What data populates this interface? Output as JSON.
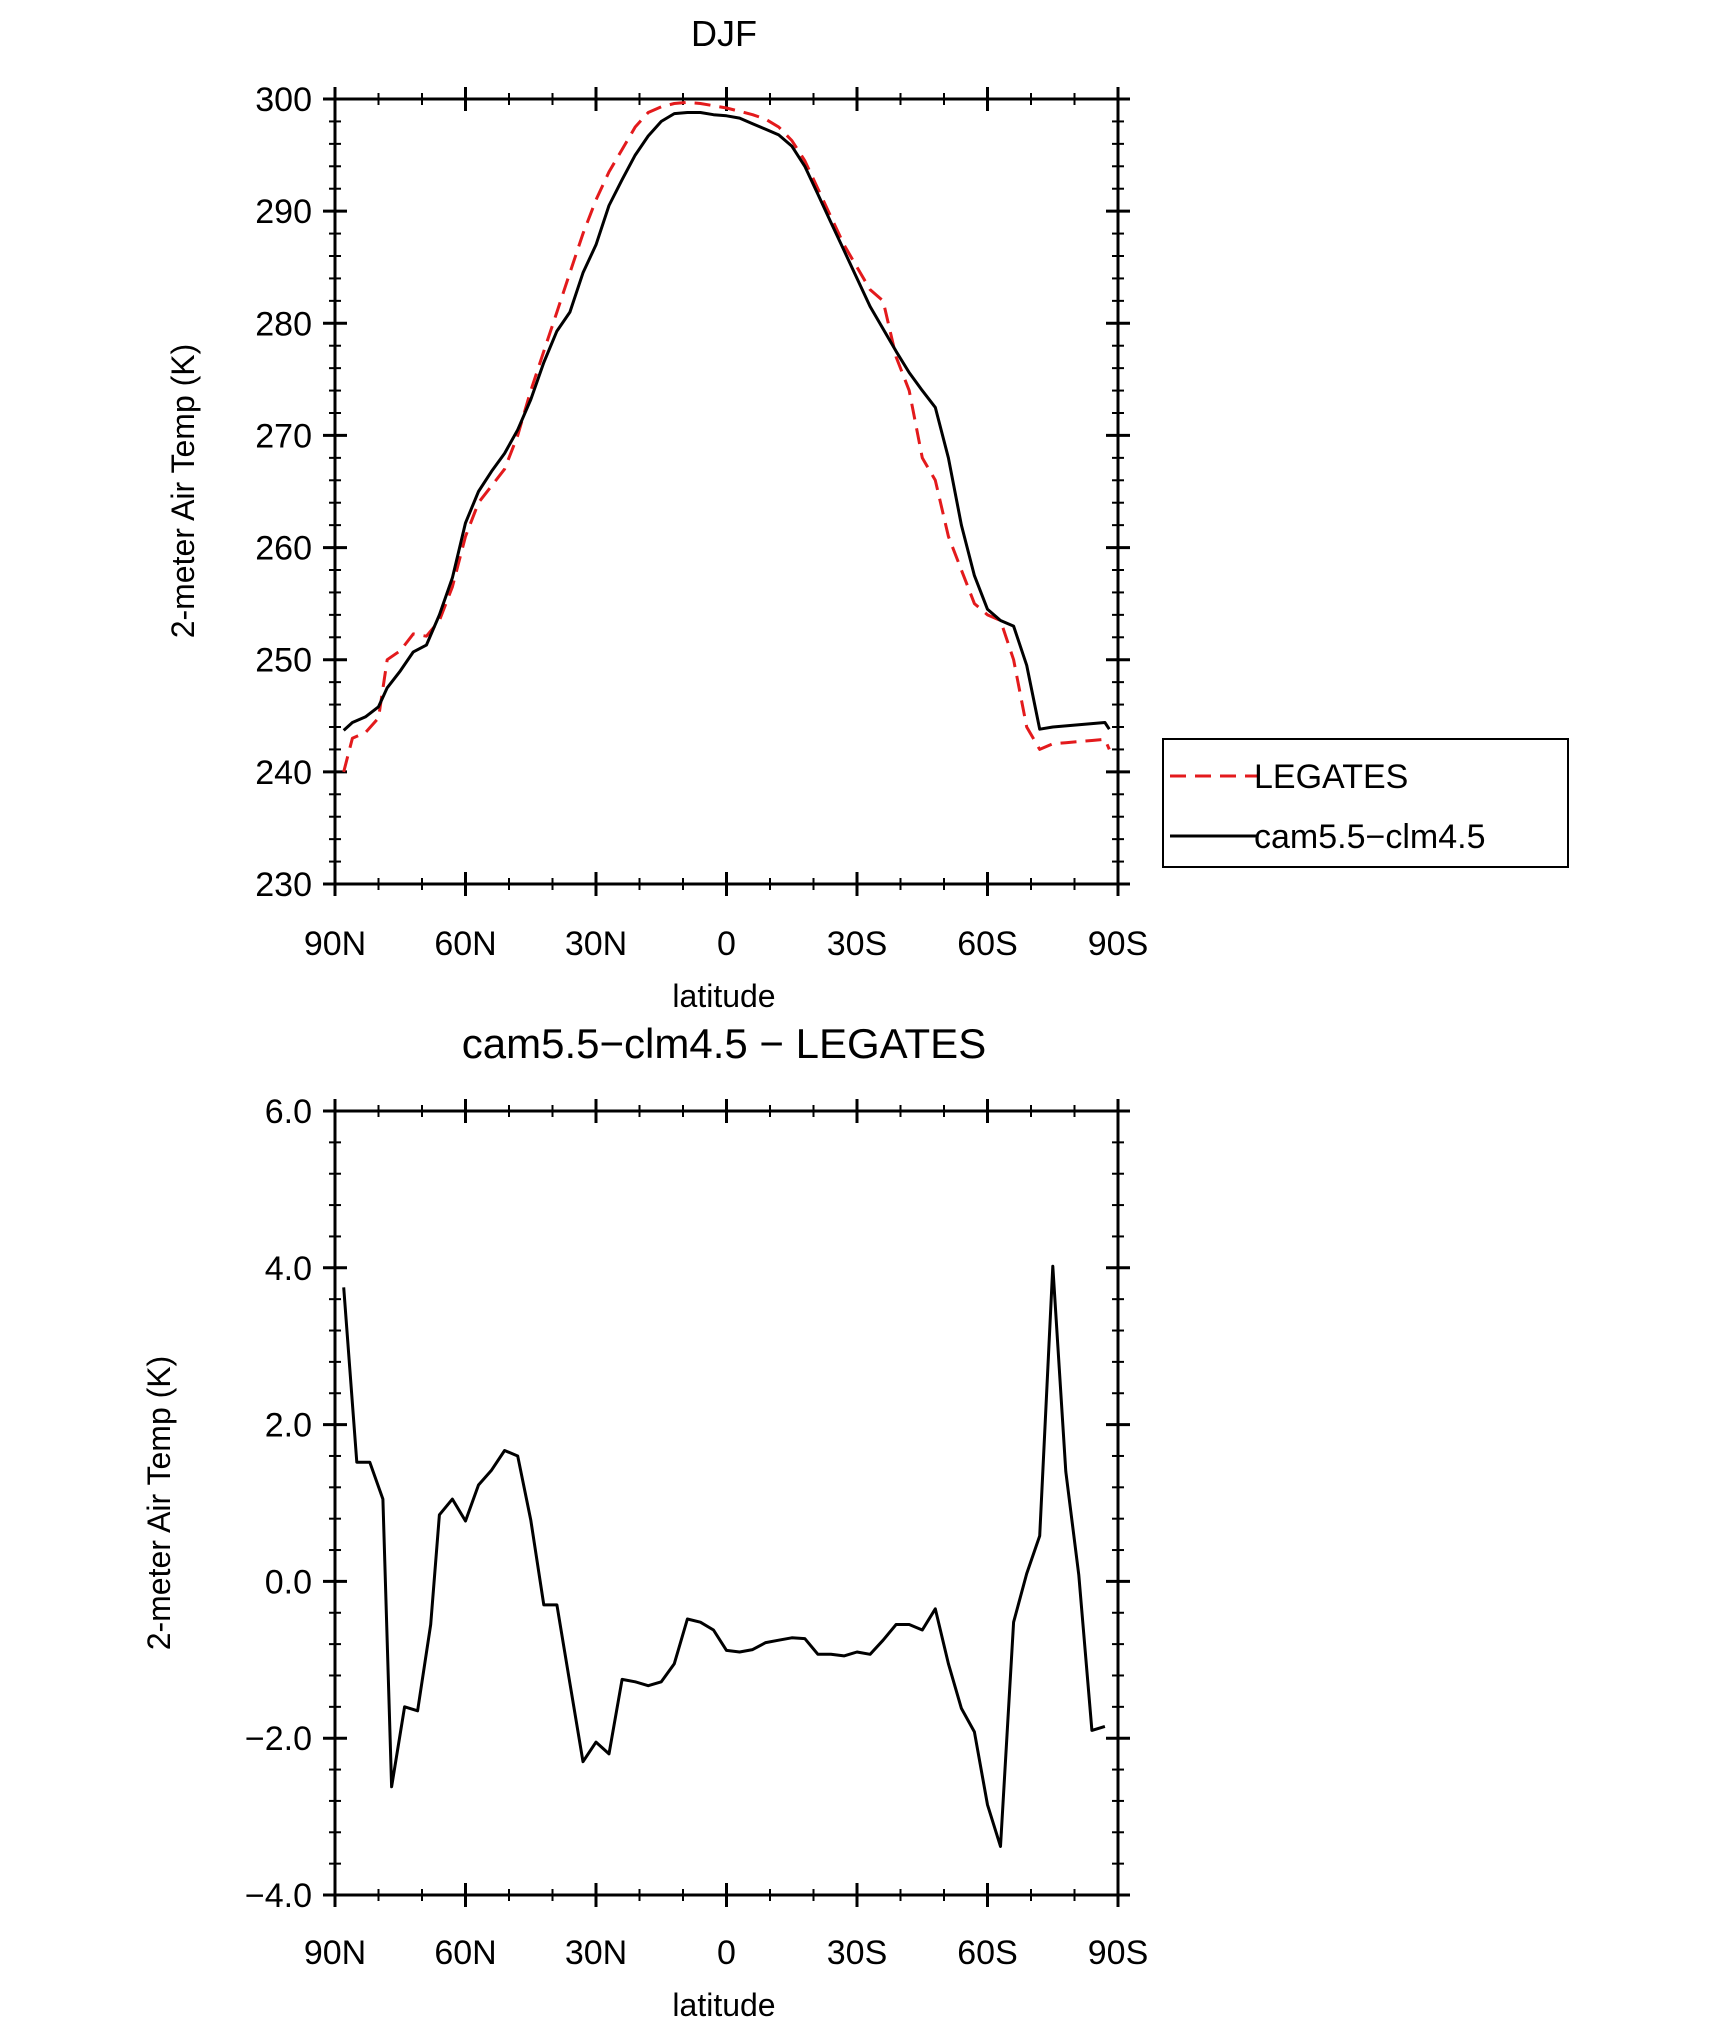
{
  "chart_data": [
    {
      "type": "line",
      "title": "DJF",
      "xlabel": "latitude",
      "ylabel": "2-meter Air Temp (K)",
      "xlim": [
        90,
        -90
      ],
      "ylim": [
        230,
        300
      ],
      "x_ticks": [
        {
          "value": 90,
          "label": "90N"
        },
        {
          "value": 60,
          "label": "60N"
        },
        {
          "value": 30,
          "label": "30N"
        },
        {
          "value": 0,
          "label": "0"
        },
        {
          "value": -30,
          "label": "30S"
        },
        {
          "value": -60,
          "label": "60S"
        },
        {
          "value": -90,
          "label": "90S"
        }
      ],
      "y_ticks": [
        {
          "value": 300,
          "label": "300"
        },
        {
          "value": 290,
          "label": "290"
        },
        {
          "value": 280,
          "label": "280"
        },
        {
          "value": 270,
          "label": "270"
        },
        {
          "value": 260,
          "label": "260"
        },
        {
          "value": 250,
          "label": "250"
        },
        {
          "value": 240,
          "label": "240"
        },
        {
          "value": 230,
          "label": "230"
        }
      ],
      "legend_position": "right",
      "series": [
        {
          "name": "LEGATES",
          "color": "#e31a1c",
          "dash": "dashed",
          "x": [
            88,
            86,
            83,
            80,
            78,
            75,
            72,
            69,
            66,
            63,
            60,
            57,
            54,
            51,
            48,
            45,
            42,
            39,
            36,
            33,
            30,
            27,
            24,
            21,
            18,
            15,
            12,
            9,
            6,
            3,
            0,
            -3,
            -6,
            -9,
            -12,
            -15,
            -18,
            -21,
            -24,
            -27,
            -30,
            -33,
            -36,
            -39,
            -42,
            -45,
            -48,
            -51,
            -54,
            -57,
            -60,
            -63,
            -66,
            -69,
            -72,
            -75,
            -78,
            -81,
            -84,
            -87,
            -88
          ],
          "y": [
            240.0,
            243.0,
            243.5,
            244.8,
            250.0,
            250.8,
            252.3,
            252.1,
            253.5,
            256.5,
            261.0,
            264.0,
            265.5,
            267.0,
            270.0,
            274.0,
            277.5,
            281.0,
            284.5,
            288.0,
            291.0,
            293.5,
            295.5,
            297.5,
            298.8,
            299.3,
            299.6,
            299.7,
            299.6,
            299.4,
            299.2,
            298.9,
            298.6,
            298.2,
            297.5,
            296.3,
            294.5,
            292.0,
            289.5,
            287.0,
            285.0,
            283.0,
            282.0,
            277.0,
            274.0,
            268.0,
            266.0,
            261.0,
            258.0,
            255.0,
            254.0,
            253.5,
            250.0,
            244.0,
            242.0,
            242.5,
            242.6,
            242.7,
            242.8,
            242.9,
            242.0
          ],
          "values_note": ""
        },
        {
          "name": "cam5.5−clm4.5",
          "color": "#000000",
          "dash": "solid",
          "x": [
            88,
            86,
            83,
            80,
            78,
            75,
            72,
            69,
            66,
            63,
            60,
            57,
            54,
            51,
            48,
            45,
            42,
            39,
            36,
            33,
            30,
            27,
            24,
            21,
            18,
            15,
            12,
            9,
            6,
            3,
            0,
            -3,
            -6,
            -9,
            -12,
            -15,
            -18,
            -21,
            -24,
            -27,
            -30,
            -33,
            -36,
            -39,
            -42,
            -45,
            -48,
            -51,
            -54,
            -57,
            -60,
            -63,
            -66,
            -69,
            -72,
            -75,
            -78,
            -81,
            -84,
            -87,
            -88
          ],
          "y": [
            243.7,
            244.4,
            244.9,
            245.8,
            247.5,
            249.0,
            250.7,
            251.3,
            254.0,
            257.3,
            262.2,
            265.0,
            266.8,
            268.4,
            270.5,
            273.2,
            276.5,
            279.3,
            281.0,
            284.5,
            287.0,
            290.5,
            292.8,
            295.0,
            296.7,
            298.0,
            298.7,
            298.8,
            298.8,
            298.6,
            298.5,
            298.3,
            297.8,
            297.3,
            296.8,
            295.8,
            294.0,
            291.5,
            289.0,
            286.5,
            284.0,
            281.5,
            279.5,
            277.5,
            275.6,
            274.0,
            272.5,
            268.0,
            262.0,
            257.5,
            254.5,
            253.5,
            253.0,
            249.5,
            243.8,
            244.0,
            244.1,
            244.2,
            244.3,
            244.4,
            243.8
          ]
        }
      ]
    },
    {
      "type": "line",
      "title": "cam5.5−clm4.5 − LEGATES",
      "xlabel": "latitude",
      "ylabel": "2-meter Air Temp (K)",
      "xlim": [
        90,
        -90
      ],
      "ylim": [
        -4.0,
        6.0
      ],
      "x_ticks": [
        {
          "value": 90,
          "label": "90N"
        },
        {
          "value": 60,
          "label": "60N"
        },
        {
          "value": 30,
          "label": "30N"
        },
        {
          "value": 0,
          "label": "0"
        },
        {
          "value": -30,
          "label": "30S"
        },
        {
          "value": -60,
          "label": "60S"
        },
        {
          "value": -90,
          "label": "90S"
        }
      ],
      "y_ticks": [
        {
          "value": 6.0,
          "label": "6.0"
        },
        {
          "value": 4.0,
          "label": "4.0"
        },
        {
          "value": 2.0,
          "label": "2.0"
        },
        {
          "value": 0.0,
          "label": "0.0"
        },
        {
          "value": -2.0,
          "label": "−2.0"
        },
        {
          "value": -4.0,
          "label": "−4.0"
        }
      ],
      "series": [
        {
          "color": "#000000",
          "x": [
            88,
            85,
            82,
            79,
            77,
            74,
            71,
            68,
            66,
            63,
            60,
            57,
            54,
            51,
            48,
            45,
            42,
            39,
            36,
            33,
            30,
            27,
            24,
            21,
            18,
            15,
            12,
            9,
            6,
            3,
            0,
            -3,
            -6,
            -9,
            -12,
            -15,
            -18,
            -21,
            -24,
            -27,
            -30,
            -33,
            -36,
            -39,
            -42,
            -45,
            -48,
            -51,
            -54,
            -57,
            -60,
            -63,
            -66,
            -69,
            -72,
            -75,
            -78,
            -81,
            -84,
            -87
          ],
          "y": [
            3.75,
            1.52,
            1.52,
            1.05,
            -2.62,
            -1.6,
            -1.65,
            -0.55,
            0.85,
            1.05,
            0.77,
            1.23,
            1.42,
            1.67,
            1.6,
            0.78,
            -0.3,
            -0.3,
            -1.3,
            -2.3,
            -2.05,
            -2.2,
            -1.25,
            -1.28,
            -1.33,
            -1.28,
            -1.05,
            -0.48,
            -0.52,
            -0.62,
            -0.88,
            -0.9,
            -0.87,
            -0.78,
            -0.75,
            -0.72,
            -0.73,
            -0.93,
            -0.93,
            -0.95,
            -0.9,
            -0.93,
            -0.75,
            -0.55,
            -0.55,
            -0.62,
            -0.35,
            -1.05,
            -1.62,
            -1.92,
            -2.85,
            -3.38,
            -0.52,
            0.1,
            0.58,
            4.02,
            1.4,
            0.08,
            -1.9,
            -1.85
          ]
        }
      ]
    }
  ]
}
